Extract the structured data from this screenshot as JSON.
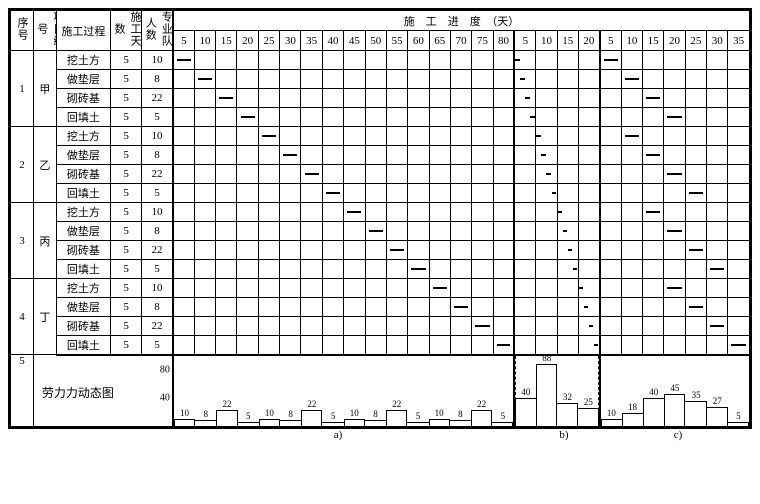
{
  "headers": {
    "seq": "序号",
    "proj": "项目编号",
    "process": "施工过程",
    "days": "施工天数",
    "crew": "专业队人数",
    "progress": "施　工　进　度　（天）"
  },
  "timeline": {
    "a_ticks": [
      5,
      10,
      15,
      20,
      25,
      30,
      35,
      40,
      45,
      50,
      55,
      60,
      65,
      70,
      75,
      80
    ],
    "b_ticks": [
      5,
      10,
      15,
      20
    ],
    "c_ticks": [
      5,
      10,
      15,
      20,
      25,
      30,
      35
    ]
  },
  "projects": [
    {
      "seq": 1,
      "code": "甲"
    },
    {
      "seq": 2,
      "code": "乙"
    },
    {
      "seq": 3,
      "code": "丙"
    },
    {
      "seq": 4,
      "code": "丁"
    }
  ],
  "processes": [
    {
      "name": "挖土方",
      "days": 5,
      "crew": 10
    },
    {
      "name": "做垫层",
      "days": 5,
      "crew": 8
    },
    {
      "name": "砌砖基",
      "days": 5,
      "crew": 22
    },
    {
      "name": "回填土",
      "days": 5,
      "crew": 5
    }
  ],
  "gantt": {
    "unit_a": 5,
    "unit_b": 5,
    "unit_c": 5,
    "a_cols": 16,
    "b_cols": 4,
    "c_cols": 7,
    "bars_a": [
      [
        0,
        1,
        2,
        3
      ],
      [
        4,
        5,
        6,
        7
      ],
      [
        8,
        9,
        10,
        11
      ],
      [
        12,
        13,
        14,
        15
      ]
    ],
    "bars_b": [
      [
        0,
        0,
        1,
        1
      ],
      [
        1,
        1,
        2,
        2
      ],
      [
        2,
        2,
        3,
        3
      ],
      [
        3,
        3,
        4,
        4
      ]
    ],
    "bars_c": [
      [
        0,
        1,
        2,
        3
      ],
      [
        1,
        2,
        3,
        4
      ],
      [
        2,
        3,
        4,
        5
      ],
      [
        3,
        4,
        5,
        6
      ]
    ],
    "bar_color": "#000000"
  },
  "labor": {
    "row_seq": 5,
    "title": "劳力力动态图",
    "y_ticks": [
      40,
      80
    ],
    "y_max": 100,
    "a": {
      "steps": [
        10,
        8,
        22,
        5,
        10,
        8,
        22,
        5,
        10,
        8,
        22,
        5,
        10,
        8,
        22,
        5
      ],
      "labels": [
        10,
        8,
        22,
        5,
        10,
        8,
        22,
        5,
        10,
        8,
        22,
        5,
        10,
        8,
        22,
        5
      ]
    },
    "b": {
      "steps": [
        40,
        88,
        32,
        25
      ],
      "labels": [
        40,
        88,
        32,
        25
      ]
    },
    "c": {
      "steps": [
        10,
        18,
        40,
        45,
        35,
        27,
        5
      ],
      "labels": [
        10,
        18,
        40,
        45,
        35,
        27,
        5
      ]
    }
  },
  "footer_labels": {
    "a": "a)",
    "b": "b)",
    "c": "c)"
  },
  "colors": {
    "border": "#000000",
    "bg": "#ffffff",
    "text": "#000000"
  }
}
